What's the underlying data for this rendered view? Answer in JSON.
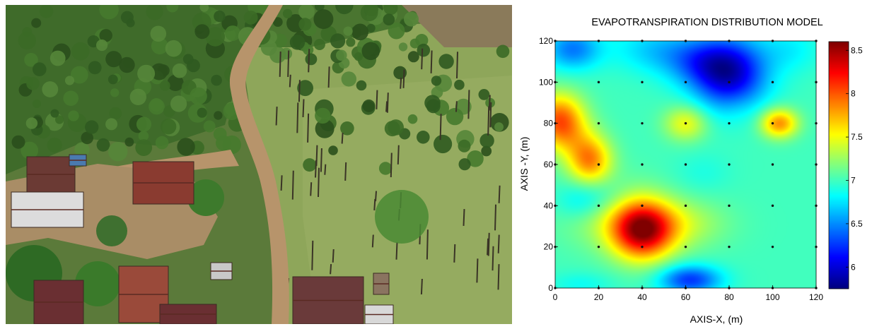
{
  "photo": {
    "subject": "aerial-view-plantation-village"
  },
  "chart_data": {
    "type": "heatmap",
    "title": "EVAPOTRANSPIRATION DISTRIBUTION MODEL",
    "xlabel": "AXIS-X, (m)",
    "ylabel": "AXIS -Y, (m)",
    "xlim": [
      0,
      120
    ],
    "ylim": [
      0,
      120
    ],
    "xticks": [
      "0",
      "20",
      "40",
      "60",
      "80",
      "100",
      "120"
    ],
    "yticks": [
      "0",
      "20",
      "40",
      "60",
      "80",
      "100",
      "120"
    ],
    "colorbar": {
      "range": [
        5.75,
        8.6
      ],
      "ticks": [
        "6",
        "6.5",
        "7",
        "7.5",
        "8",
        "8.5"
      ],
      "colormap": "jet"
    },
    "sample_points": {
      "x": [
        0,
        20,
        40,
        60,
        80,
        100,
        120
      ],
      "y": [
        0,
        20,
        40,
        60,
        80,
        100,
        120
      ]
    },
    "peaks": [
      {
        "x": 42,
        "y": 28,
        "value": 8.6
      },
      {
        "x": 3,
        "y": 82,
        "value": 8.05
      },
      {
        "x": 18,
        "y": 63,
        "value": 7.9
      },
      {
        "x": 103,
        "y": 80,
        "value": 7.85
      },
      {
        "x": 60,
        "y": 80,
        "value": 7.5
      }
    ],
    "troughs": [
      {
        "x": 82,
        "y": 103,
        "value": 5.85
      },
      {
        "x": 62,
        "y": 3,
        "value": 6.3
      },
      {
        "x": 5,
        "y": 115,
        "value": 6.3
      }
    ]
  }
}
